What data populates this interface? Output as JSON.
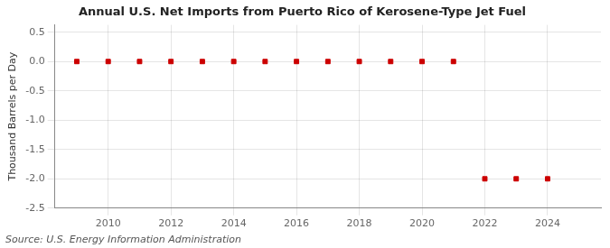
{
  "chart_data": {
    "type": "scatter",
    "title": "Annual U.S. Net Imports from Puerto Rico of Kerosene-Type Jet Fuel",
    "ylabel": "Thousand Barrels per Day",
    "annotations": [
      "Source: U.S. Energy Information Administration"
    ],
    "x": [
      2009,
      2010,
      2011,
      2012,
      2013,
      2014,
      2015,
      2016,
      2017,
      2018,
      2019,
      2020,
      2021,
      2022,
      2023,
      2024
    ],
    "values": [
      0.0,
      0.0,
      0.0,
      0.0,
      0.0,
      0.0,
      0.0,
      0.0,
      0.0,
      0.0,
      0.0,
      0.0,
      0.0,
      -2.0,
      -2.0,
      -2.0
    ],
    "color": "#cc0000",
    "marker": "square",
    "xlim": [
      2008.3,
      2025.7
    ],
    "xticks": [
      2010,
      2012,
      2014,
      2016,
      2018,
      2020,
      2022,
      2024
    ],
    "ylim": [
      -2.5,
      0.625
    ],
    "yticks": [
      0.5,
      {
        "value": 0,
        "label": "0.0"
      },
      -0.5,
      {
        "value": -1,
        "label": "-1.0"
      },
      -1.5,
      {
        "value": -2,
        "label": "-2.0"
      },
      -2.5
    ],
    "grid": true
  }
}
